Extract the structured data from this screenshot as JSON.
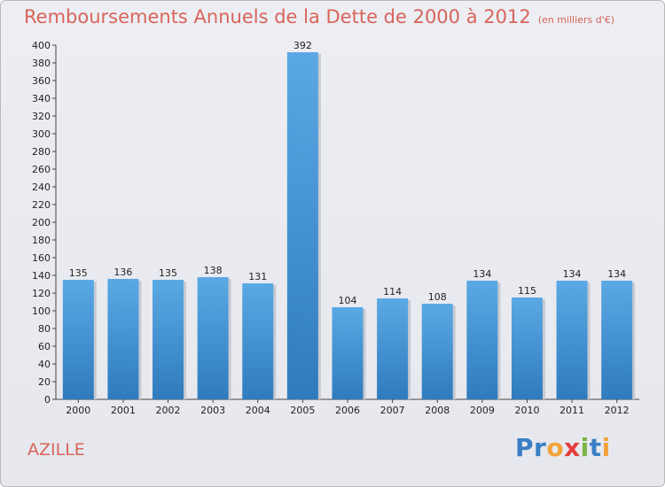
{
  "title": "Remboursements Annuels de la Dette de 2000 à 2012",
  "subtitle": "(en milliers d'€)",
  "commune": "AZILLE",
  "brand": "Proxiti",
  "colors": {
    "title": "#d9645a",
    "bar_top": "#5aa9e4",
    "bar_bottom": "#2f7bbd",
    "background": "#e8eaf0"
  },
  "chart_data": {
    "type": "bar",
    "categories": [
      "2000",
      "2001",
      "2002",
      "2003",
      "2004",
      "2005",
      "2006",
      "2007",
      "2008",
      "2009",
      "2010",
      "2011",
      "2012"
    ],
    "values": [
      135,
      136,
      135,
      138,
      131,
      392,
      104,
      114,
      108,
      134,
      115,
      134,
      134
    ],
    "title": "Remboursements Annuels de la Dette de 2000 à 2012",
    "xlabel": "",
    "ylabel": "",
    "ylim": [
      0,
      400
    ],
    "yticks": [
      0,
      20,
      40,
      60,
      80,
      100,
      120,
      140,
      160,
      180,
      200,
      220,
      240,
      260,
      280,
      300,
      320,
      340,
      360,
      380,
      400
    ],
    "grid": false,
    "legend": "none",
    "data_labels": true
  }
}
